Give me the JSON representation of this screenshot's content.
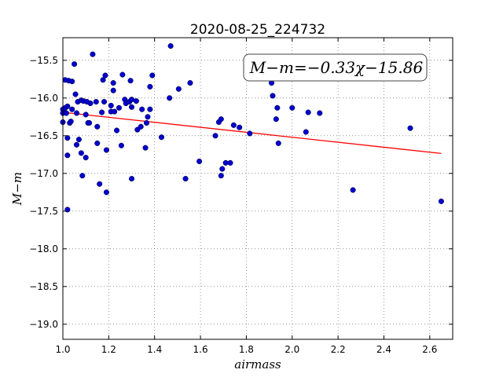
{
  "chart_data": {
    "type": "scatter",
    "title": "2020-08-25_224732",
    "xlabel": "airmass",
    "ylabel": "M−m",
    "xlim": [
      1.0,
      2.7
    ],
    "ylim": [
      -15.2,
      -19.2
    ],
    "y_inverted": true,
    "grid": true,
    "grid_style": "dotted",
    "x_ticks": [
      1.0,
      1.2,
      1.4,
      1.6,
      1.8,
      2.0,
      2.2,
      2.4,
      2.6
    ],
    "x_tick_labels": [
      "1.0",
      "1.2",
      "1.4",
      "1.6",
      "1.8",
      "2.0",
      "2.2",
      "2.4",
      "2.6"
    ],
    "y_ticks": [
      -15.5,
      -16.0,
      -16.5,
      -17.0,
      -17.5,
      -18.0,
      -18.5,
      -19.0
    ],
    "y_tick_labels": [
      "−15.5",
      "−16.0",
      "−16.5",
      "−17.0",
      "−17.5",
      "−18.0",
      "−18.5",
      "−19.0"
    ],
    "annotation": "M−m=−0.33χ−15.86",
    "annotation_position": "top-right",
    "fit_line": {
      "color": "#ff0000",
      "x": [
        1.0,
        2.65
      ],
      "y": [
        -16.19,
        -16.735
      ]
    },
    "point_color": "#0000cc",
    "points": [
      [
        1.0,
        -16.2
      ],
      [
        1.0,
        -16.32
      ],
      [
        1.0,
        -16.15
      ],
      [
        1.01,
        -15.76
      ],
      [
        1.01,
        -16.13
      ],
      [
        1.015,
        -16.2
      ],
      [
        1.02,
        -16.11
      ],
      [
        1.02,
        -16.53
      ],
      [
        1.02,
        -16.76
      ],
      [
        1.02,
        -17.48
      ],
      [
        1.025,
        -15.77
      ],
      [
        1.03,
        -16.33
      ],
      [
        1.035,
        -16.31
      ],
      [
        1.04,
        -15.78
      ],
      [
        1.04,
        -16.15
      ],
      [
        1.05,
        -15.55
      ],
      [
        1.055,
        -15.95
      ],
      [
        1.06,
        -16.2
      ],
      [
        1.06,
        -16.62
      ],
      [
        1.065,
        -16.05
      ],
      [
        1.07,
        -16.55
      ],
      [
        1.08,
        -16.03
      ],
      [
        1.08,
        -16.73
      ],
      [
        1.085,
        -17.03
      ],
      [
        1.09,
        -16.04
      ],
      [
        1.1,
        -16.22
      ],
      [
        1.1,
        -16.79
      ],
      [
        1.105,
        -16.05
      ],
      [
        1.11,
        -16.33
      ],
      [
        1.115,
        -16.33
      ],
      [
        1.12,
        -16.07
      ],
      [
        1.13,
        -15.42
      ],
      [
        1.145,
        -16.05
      ],
      [
        1.15,
        -16.6
      ],
      [
        1.15,
        -16.38
      ],
      [
        1.16,
        -17.14
      ],
      [
        1.17,
        -16.19
      ],
      [
        1.175,
        -15.76
      ],
      [
        1.18,
        -16.05
      ],
      [
        1.185,
        -15.7
      ],
      [
        1.19,
        -16.69
      ],
      [
        1.19,
        -17.25
      ],
      [
        1.21,
        -16.1
      ],
      [
        1.21,
        -16.18
      ],
      [
        1.22,
        -15.8
      ],
      [
        1.22,
        -15.9
      ],
      [
        1.225,
        -16.18
      ],
      [
        1.235,
        -16.43
      ],
      [
        1.245,
        -16.13
      ],
      [
        1.255,
        -16.63
      ],
      [
        1.26,
        -15.69
      ],
      [
        1.27,
        -16.02
      ],
      [
        1.275,
        -16.07
      ],
      [
        1.29,
        -16.05
      ],
      [
        1.295,
        -15.77
      ],
      [
        1.3,
        -16.02
      ],
      [
        1.3,
        -16.12
      ],
      [
        1.3,
        -17.07
      ],
      [
        1.32,
        -16.04
      ],
      [
        1.325,
        -16.42
      ],
      [
        1.34,
        -16.38
      ],
      [
        1.345,
        -16.15
      ],
      [
        1.36,
        -16.66
      ],
      [
        1.365,
        -16.33
      ],
      [
        1.37,
        -16.25
      ],
      [
        1.38,
        -16.15
      ],
      [
        1.38,
        -15.85
      ],
      [
        1.39,
        -15.7
      ],
      [
        1.43,
        -16.52
      ],
      [
        1.465,
        -16.0
      ],
      [
        1.47,
        -15.31
      ],
      [
        1.505,
        -15.88
      ],
      [
        1.535,
        -17.07
      ],
      [
        1.555,
        -15.8
      ],
      [
        1.595,
        -16.84
      ],
      [
        1.665,
        -16.5
      ],
      [
        1.68,
        -16.32
      ],
      [
        1.69,
        -16.28
      ],
      [
        1.69,
        -17.03
      ],
      [
        1.695,
        -16.94
      ],
      [
        1.71,
        -16.86
      ],
      [
        1.73,
        -16.86
      ],
      [
        1.745,
        -16.36
      ],
      [
        1.77,
        -16.39
      ],
      [
        1.815,
        -16.47
      ],
      [
        1.91,
        -15.8
      ],
      [
        1.915,
        -15.97
      ],
      [
        1.93,
        -16.28
      ],
      [
        1.935,
        -16.13
      ],
      [
        1.94,
        -16.6
      ],
      [
        2.0,
        -16.13
      ],
      [
        2.06,
        -16.45
      ],
      [
        2.07,
        -16.19
      ],
      [
        2.12,
        -16.2
      ],
      [
        2.265,
        -17.22
      ],
      [
        2.515,
        -16.4
      ],
      [
        2.65,
        -17.37
      ]
    ]
  }
}
